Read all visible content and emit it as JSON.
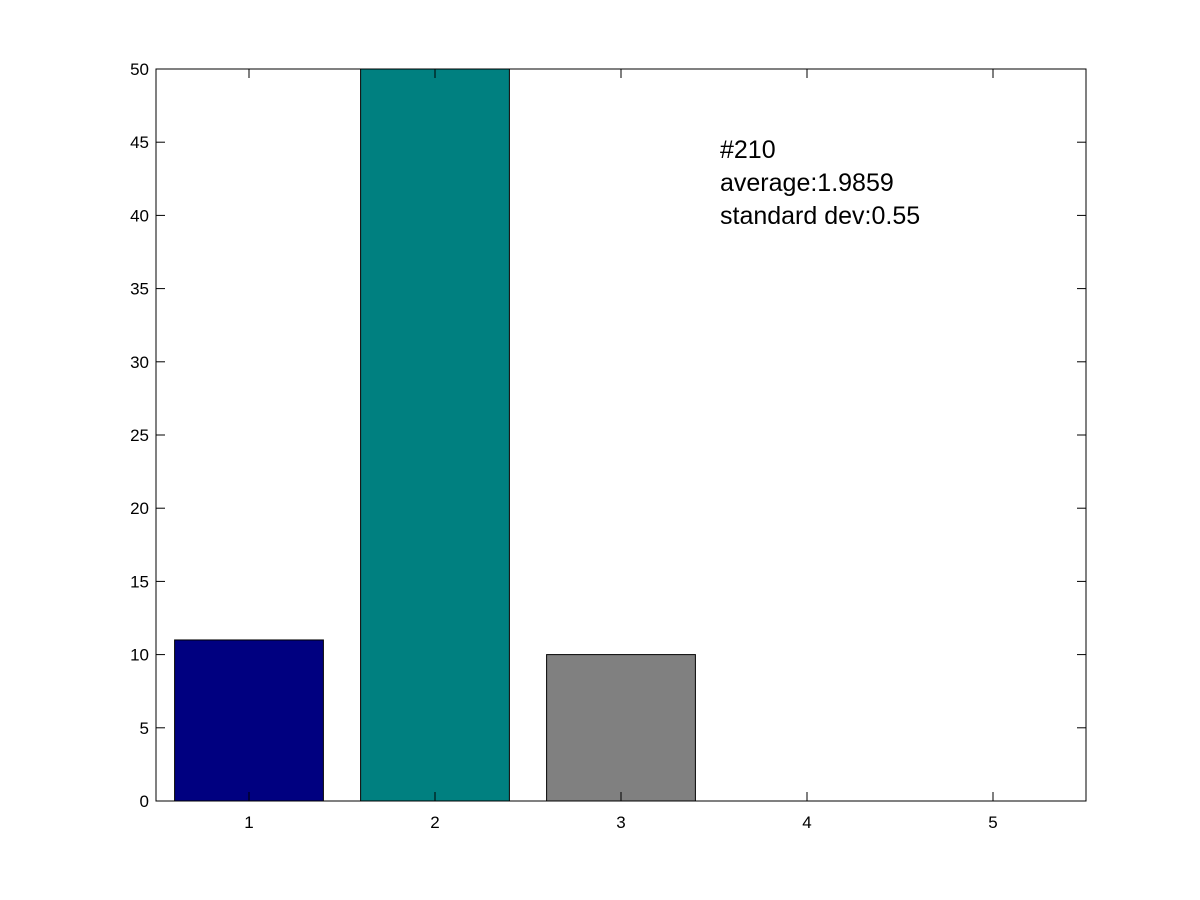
{
  "chart_data": {
    "type": "bar",
    "categories": [
      "1",
      "2",
      "3",
      "4",
      "5"
    ],
    "values": [
      11,
      50,
      10,
      0,
      0
    ],
    "bar_colors": [
      "#000080",
      "#008080",
      "#808080",
      "#808080",
      "#808080"
    ],
    "xlim": [
      0.5,
      5.5
    ],
    "ylim": [
      0,
      50
    ],
    "yticks": [
      0,
      5,
      10,
      15,
      20,
      25,
      30,
      35,
      40,
      45,
      50
    ],
    "xticks": [
      1,
      2,
      3,
      4,
      5
    ],
    "title": "",
    "xlabel": "",
    "ylabel": "",
    "grid": false,
    "annotations": [
      "#210",
      "average:1.9859",
      "standard dev:0.55"
    ]
  }
}
